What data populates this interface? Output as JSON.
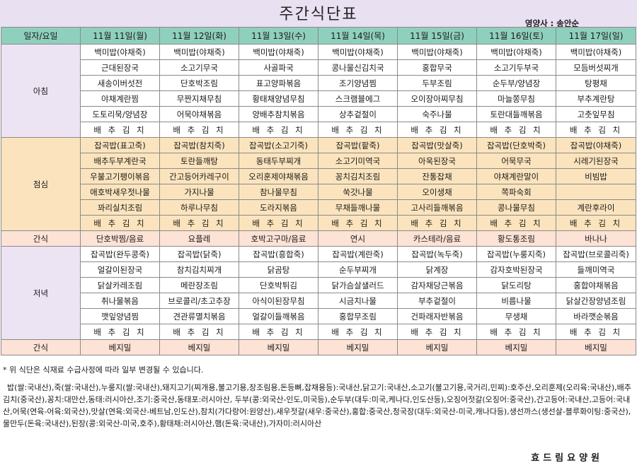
{
  "header": {
    "title": "주간식단표",
    "dietitian": "영양사 : 송안순"
  },
  "table": {
    "corner": "일자/요일",
    "days": [
      "11월 11일(월)",
      "11월 12일(화)",
      "11월 13일(수)",
      "11월 14일(목)",
      "11월 15일(금)",
      "11월 16일(토)",
      "11월 17일(일)"
    ],
    "sections": [
      {
        "slot": "아침",
        "kind": "breakfast",
        "rows": [
          [
            "백미밥(야채죽)",
            "백미밥(야채죽)",
            "백미밥(야채죽)",
            "백미밥(야채죽)",
            "백미밥(야채죽)",
            "백미밥(야채죽)",
            "백미밥(야채죽)"
          ],
          [
            "근대된장국",
            "소고기무국",
            "사골파국",
            "콩나물신김치국",
            "홍합무국",
            "소고기두부국",
            "모듬버섯찌개"
          ],
          [
            "새송이버섯전",
            "단호박조림",
            "표고양파볶음",
            "조기양념찜",
            "두부조림",
            "순두부/양념장",
            "탕평채"
          ],
          [
            "야채계란찜",
            "무짠지채무침",
            "황태채양념무침",
            "스크램블에그",
            "오이장아찌무침",
            "마늘쫑무침",
            "부추계란탕"
          ],
          [
            "도토리묵/양념장",
            "어묵야채볶음",
            "양배추참치볶음",
            "상추겉절이",
            "숙주나물",
            "토란대들깨볶음",
            "고춧잎무침"
          ],
          [
            "배 추 김 치",
            "배 추 김 치",
            "배 추 김 치",
            "배 추 김 치",
            "배 추 김 치",
            "배 추 김 치",
            "배 추 김 치"
          ]
        ]
      },
      {
        "slot": "점심",
        "kind": "lunch",
        "rows": [
          [
            "잡곡밥(표고죽)",
            "잡곡밥(참치죽)",
            "잡곡밥(소고기죽)",
            "잡곡밥(팥죽)",
            "잡곡밥(맛살죽)",
            "잡곡밥(단호박죽)",
            "잡곡밥(야채죽)"
          ],
          [
            "배추두부계란국",
            "토란들깨탕",
            "동태두부찌개",
            "소고기미역국",
            "아욱된장국",
            "어묵무국",
            "시레기된장국"
          ],
          [
            "우불고기팽이볶음",
            "간고등어카레구이",
            "오리훈제야채볶음",
            "꽁치김치조림",
            "잔통잡채",
            "야채계란말이",
            "비빔밥"
          ],
          [
            "애호박새우젓나물",
            "가지나물",
            "참나물무침",
            "쑥갓나물",
            "오이생채",
            "쪽파숙회",
            ""
          ],
          [
            "꽈리실치조림",
            "하루나무침",
            "도라지볶음",
            "무채들깨나물",
            "고사리들깨볶음",
            "콩나물무침",
            "계란후라이"
          ],
          [
            "배 추 김 치",
            "배 추 김 치",
            "배 추 김 치",
            "배 추 김 치",
            "배 추 김 치",
            "배 추 김 치",
            "배 추 김 치"
          ]
        ]
      },
      {
        "slot": "간식",
        "kind": "snack",
        "rows": [
          [
            "단호박찜/음료",
            "요플레",
            "호박고구마/음료",
            "연시",
            "카스테라/음료",
            "황도통조림",
            "바나나"
          ]
        ]
      },
      {
        "slot": "저녁",
        "kind": "dinner",
        "rows": [
          [
            "잡곡밥(완두콩죽)",
            "잡곡밥(닭죽)",
            "잡곡밥(흥합죽)",
            "잡곡밥(계란죽)",
            "잡곡밥(녹두죽)",
            "잡곡밥(누룽지죽)",
            "잡곡밥(브로콜리죽)"
          ],
          [
            "얼갈이된장국",
            "참치김치찌개",
            "닭곰탕",
            "순두부찌개",
            "닭계장",
            "감자호박된장국",
            "들깨미역국"
          ],
          [
            "닭살카레조림",
            "메란장조림",
            "단호박튀김",
            "닭가슴살샐러드",
            "감자채당근볶음",
            "닭도리탕",
            "홍합야채볶음"
          ],
          [
            "취나물볶음",
            "브로콜리/초고추장",
            "아식이된장무침",
            "시금치나물",
            "부추겉절이",
            "비름나물",
            "닭살간장양념조림"
          ],
          [
            "깻잎양념찜",
            "견관류멸치볶음",
            "얼갈이들깨볶음",
            "홍합무조림",
            "건파래자반볶음",
            "무생채",
            "바라깻순볶음"
          ],
          [
            "배 추 김 치",
            "배 추 김 치",
            "배 추 김 치",
            "배 추 김 치",
            "배 추 김 치",
            "배 추 김 치",
            "배 추 김 치"
          ]
        ]
      },
      {
        "slot": "간식",
        "kind": "snack",
        "rows": [
          [
            "베지밀",
            "베지밀",
            "베지밀",
            "베지밀",
            "베지밀",
            "베지밀",
            "베지밀"
          ]
        ]
      }
    ]
  },
  "footer": {
    "note": "* 위 식단은 식재료 수급사정에 따라 일부 변경될 수 있습니다.",
    "origin": "밥(쌀:국내산),죽(쌀:국내산),누룽지(쌀:국내산),돼지고기(찌개용,불고기용,장조림용,돈등뼈,잡채용등):국내산,닭고기:국내산,소고기(불고기용,국거리,민찌):호주산,오리훈제(오리육:국내산),배추김치(중국산),꽁치:대만산,동태:러시아산,조기:중국산,동태포:러시아산, 두부(콩:외국산-인도,미국등),순두부(대두:미국,케나다,인도산등),오징어젓갈(오징어:중국산),간고등어:국내산,고등어:국내산,어묵(연육-어육:외국산),맛살(연육:외국산-베트남,인도산),참치(가다랑어:원양산),새우젓갈(새우:중국산),홍합:중국산,청국장(대두:외국산-미국,캐나다등),생선까스(생선살-블루화이팅:중국산),물만두(돈육:국내산),된장(콩:외국산-미국,호주),황태채:러시아산,햄(돈육:국내산),가자미:러시아산",
    "facility": "효드림요양원"
  }
}
